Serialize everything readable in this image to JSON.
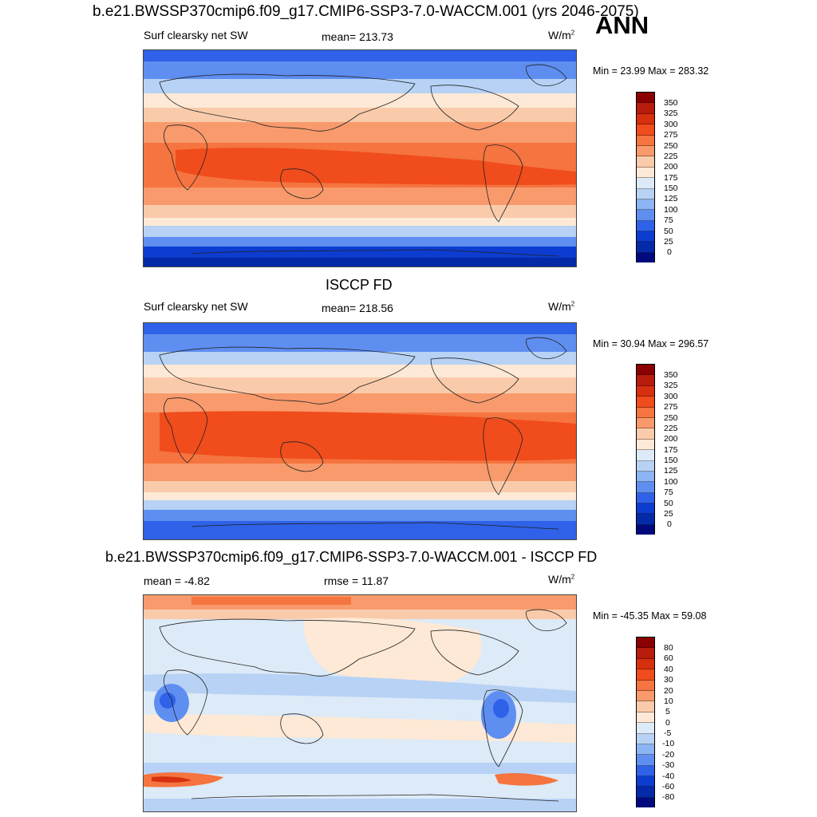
{
  "header": {
    "case_title": "b.e21.BWSSP370cmip6.f09_g17.CMIP6-SSP3-7.0-WACCM.001 (yrs 2046-2075)",
    "season": "ANN"
  },
  "panels": [
    {
      "variable": "Surf clearsky net SW",
      "stat": "mean= 213.73",
      "units_base": "W/m",
      "units_exp": "2",
      "minmax": "Min =  23.99 Max = 283.32",
      "colorbar_labels": [
        "350",
        "325",
        "300",
        "275",
        "250",
        "225",
        "200",
        "175",
        "150",
        "125",
        "100",
        "75",
        "50",
        "25",
        "0"
      ]
    },
    {
      "title": "ISCCP FD",
      "variable": "Surf clearsky net SW",
      "stat": "mean= 218.56",
      "units_base": "W/m",
      "units_exp": "2",
      "minmax": "Min =  30.94 Max = 296.57",
      "colorbar_labels": [
        "350",
        "325",
        "300",
        "275",
        "250",
        "225",
        "200",
        "175",
        "150",
        "125",
        "100",
        "75",
        "50",
        "25",
        "0"
      ]
    },
    {
      "title": "b.e21.BWSSP370cmip6.f09_g17.CMIP6-SSP3-7.0-WACCM.001 - ISCCP FD",
      "stat": "mean =  -4.82",
      "stat2": "rmse =  11.87",
      "units_base": "W/m",
      "units_exp": "2",
      "minmax": "Min = -45.35 Max =  59.08",
      "colorbar_labels": [
        "80",
        "60",
        "40",
        "30",
        "20",
        "10",
        "5",
        "0",
        "-5",
        "-10",
        "-20",
        "-30",
        "-40",
        "-60",
        "-80"
      ]
    }
  ],
  "colors": {
    "abs_scale": [
      "#8b0000",
      "#b71c0c",
      "#d7300e",
      "#f04c1c",
      "#f5743f",
      "#f89a6c",
      "#facbaa",
      "#fde9d6",
      "#ddeaf7",
      "#b7d2f5",
      "#8db4f4",
      "#5f8ef1",
      "#2f62e8",
      "#0c3dd0",
      "#042aa8",
      "#000a7d"
    ],
    "diff_scale": [
      "#8b0000",
      "#b71c0c",
      "#d7300e",
      "#f04c1c",
      "#f5743f",
      "#f89a6c",
      "#facbaa",
      "#fde9d6",
      "#ddeaf7",
      "#b7d2f5",
      "#8db4f4",
      "#5f8ef1",
      "#2f62e8",
      "#0c3dd0",
      "#042aa8",
      "#000a7d"
    ]
  }
}
